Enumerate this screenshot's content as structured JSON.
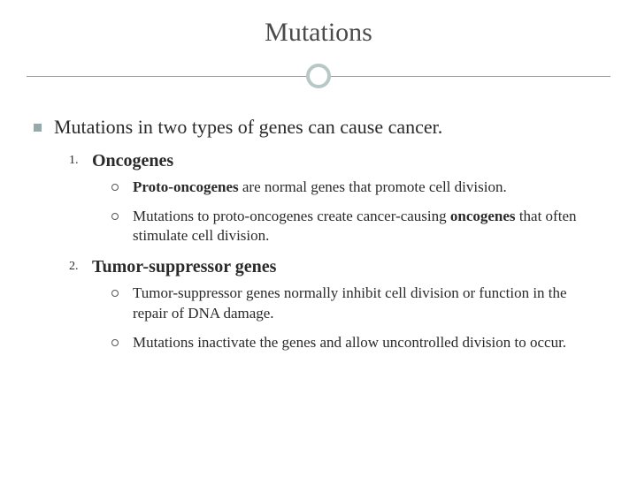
{
  "slide": {
    "title": "Mutations",
    "title_color": "#4a4a4a",
    "title_fontsize": 30,
    "accent_color": "#97a9a9",
    "circle_border_color": "#b8c7c7",
    "rule_color": "#999999",
    "background_color": "#ffffff",
    "body_color": "#2a2a2a",
    "main_point": "Mutations in two types of genes can cause cancer.",
    "main_fontsize": 22,
    "items": [
      {
        "number": "1.",
        "heading": "Oncogenes",
        "heading_fontsize": 20,
        "sub": [
          {
            "pre_bold": "Proto-oncogenes",
            "post": " are normal genes that promote cell division."
          },
          {
            "pre": "Mutations to proto-oncogenes create cancer-causing ",
            "bold": "oncogenes",
            "post": " that often stimulate cell division."
          }
        ]
      },
      {
        "number": "2.",
        "heading": "Tumor-suppressor genes",
        "heading_fontsize": 20,
        "sub": [
          {
            "plain": "Tumor-suppressor genes normally inhibit cell division or function in the repair of DNA damage."
          },
          {
            "plain": "Mutations inactivate the genes and allow uncontrolled division to occur."
          }
        ]
      }
    ],
    "sub_fontsize": 17
  }
}
